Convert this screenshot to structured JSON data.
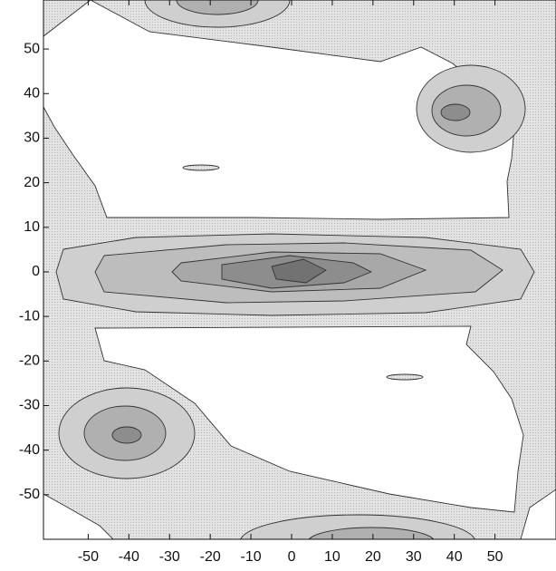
{
  "chart_data": {
    "type": "contour",
    "xlim": [
      -61,
      65
    ],
    "ylim": [
      -60,
      61
    ],
    "xticks": [
      -50,
      -40,
      -30,
      -20,
      -10,
      0,
      10,
      20,
      30,
      40,
      50
    ],
    "yticks": [
      -50,
      -40,
      -30,
      -20,
      -10,
      0,
      10,
      20,
      30,
      40,
      50
    ]
  }
}
